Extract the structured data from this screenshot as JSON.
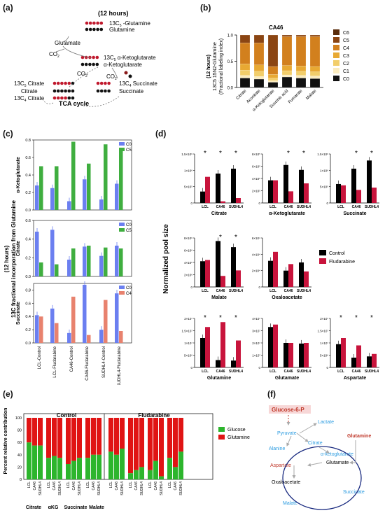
{
  "panel_labels": {
    "a": "(a)",
    "b": "(b)",
    "c": "(c)",
    "d": "(d)",
    "e": "(e)",
    "f": "(f)"
  },
  "panel_a": {
    "header": "(12 hours)",
    "m1": "13C",
    "m1_sub": "5",
    "m1_rest": " -Glutamine",
    "m2": "Glutamine",
    "glu": "Glutamate",
    "co2_1": "CO",
    "co2_2": "CO",
    "co2_3": "CO",
    "akg_lab": "13C",
    "akg_sub": "5",
    "akg_rest": " α-Ketoglutarate",
    "akg2": "α-Ketoglutarate",
    "succ_lab": "13C",
    "succ_sub": "4",
    "succ_rest": " Succinate",
    "succ2": "Succinate",
    "cit5_lab": "13C",
    "cit5_sub": "5",
    "cit5_rest": " Citrate",
    "cit": "Citrate",
    "cit4_lab": "13C",
    "cit4_sub": "4",
    "cit4_rest": " Citrate",
    "tca": "TCA cycle"
  },
  "panel_b": {
    "title": "CA46",
    "ylabel1": "(12 hours)",
    "ylabel2": "13C5 15N2-Glutamine",
    "ylabel3": "(Fractional labeling index)",
    "yticks": [
      "0.0",
      "0.5",
      "1.0"
    ],
    "legend": [
      "C6",
      "C5",
      "C4",
      "C3",
      "C2",
      "C1",
      "C0"
    ],
    "colors": {
      "C6": "#5a2d0c",
      "C5": "#8b4513",
      "C4": "#d2801e",
      "C3": "#e8a933",
      "C2": "#f2ce6b",
      "C1": "#fbecc0",
      "C0": "#111111"
    }
  },
  "panel_c": {
    "ylabel_main": "13C fractional incorporation from Glutamine",
    "ylabel_hours": "(12 hours)",
    "sub1": {
      "title": "α-Ketoglutarate",
      "legend": [
        "C0",
        "C5"
      ],
      "yticks": [
        "0.0",
        "0.2",
        "0.4",
        "0.6",
        "0.8"
      ]
    },
    "sub2": {
      "title": "Citrate",
      "legend": [
        "C0",
        "C5"
      ],
      "yticks": [
        "0.0",
        "0.2",
        "0.4",
        "0.6"
      ]
    },
    "sub3": {
      "title": "Succinate",
      "legend": [
        "C0",
        "C4"
      ],
      "yticks": [
        "0.0",
        "0.2",
        "0.4",
        "0.6",
        "0.8"
      ]
    },
    "xlabels": [
      "LCL-Control",
      "LCL-Fludarabine",
      "CA46-Control",
      "CA46-Fludarabine",
      "SUDHL4-Control",
      "SUDHL4-Fludarabine"
    ]
  },
  "panel_d": {
    "ylabel": "Normalized pool size",
    "legend": [
      "Control",
      "Fludarabine"
    ],
    "colors": {
      "Control": "#000000",
      "Fludarabine": "#c8143c"
    },
    "xlabels": [
      "LCL",
      "CA46",
      "SUDHL4"
    ],
    "sig": "*",
    "titles": [
      "Citrate",
      "α-Ketoglutarate",
      "Succinate",
      "Malate",
      "Oxaloacetate",
      "Glutamine",
      "Glutamate",
      "Aspartate"
    ],
    "yticks": {
      "Citrate": [
        "0",
        "5×10⁵",
        "1×10⁶",
        "1.5×10⁶"
      ],
      "α-Ketoglutarate": [
        "0",
        "2×10⁵",
        "4×10⁵",
        "6×10⁵",
        "8×10⁵"
      ],
      "Succinate": [
        "0",
        "5×10⁵",
        "1×10⁶",
        "1.5×10⁶"
      ],
      "Malate": [
        "0",
        "2×10⁶",
        "4×10⁶",
        "6×10⁶",
        "8×10⁶"
      ],
      "Oxaloacetate": [
        "0",
        "2×10⁴",
        "4×10⁴",
        "6×10⁴"
      ],
      "Glutamine": [
        "0",
        "5×10⁶",
        "1×10⁷",
        "1.5×10⁷",
        "2×10⁷"
      ],
      "Glutamate": [
        "0",
        "1×10⁷",
        "2×10⁷",
        "3×10⁷",
        "4×10⁷"
      ],
      "Aspartate": [
        "0",
        "5×10⁶",
        "1×10⁷",
        "1.5×10⁷",
        "2×10⁷"
      ]
    }
  },
  "panel_e": {
    "ylabel": "Percent relative contribution",
    "group_control": "Control",
    "group_flud": "Fludarabine",
    "legend": [
      "Glucose",
      "Glutamine"
    ],
    "colors": {
      "Glucose": "#2db52d",
      "Glutamine": "#e01414"
    },
    "yticks": [
      "0",
      "20",
      "40",
      "60",
      "80",
      "100"
    ],
    "cells": [
      "LCL",
      "CA46",
      "SUDHL4"
    ],
    "metabolites": [
      "Citrate",
      "αKG",
      "Succinate",
      "Malate"
    ]
  },
  "panel_f": {
    "g6p": "Glucose-6-P",
    "lactate": "Lactate",
    "pyruvate": "Pyruvate",
    "alanine": "Alanine",
    "citrate": "Citrate",
    "glutamine": "Glutamine",
    "akg": "α-ketoglutarate",
    "glutamate": "Glutamate",
    "aspartate": "Aspartate",
    "oaa": "Oxaloacetate",
    "malate": "Malate",
    "succinate": "Succinate"
  },
  "chart_data": [
    {
      "type": "bar",
      "id": "b",
      "title": "CA46",
      "categories": [
        "Citrate",
        "Aconitate",
        "α-Ketoglutarate",
        "Succinic acid",
        "Fumarate",
        "Malate"
      ],
      "ylim": [
        0,
        1
      ],
      "stacked": true,
      "series": [
        {
          "name": "C0",
          "values": [
            0.18,
            0.16,
            0.1,
            0.2,
            0.18,
            0.17
          ]
        },
        {
          "name": "C1",
          "values": [
            0.05,
            0.05,
            0.03,
            0.04,
            0.05,
            0.05
          ]
        },
        {
          "name": "C2",
          "values": [
            0.1,
            0.1,
            0.05,
            0.08,
            0.08,
            0.08
          ]
        },
        {
          "name": "C3",
          "values": [
            0.12,
            0.12,
            0.07,
            0.1,
            0.1,
            0.1
          ]
        },
        {
          "name": "C4",
          "values": [
            0.4,
            0.42,
            0.15,
            0.55,
            0.56,
            0.57
          ]
        },
        {
          "name": "C5",
          "values": [
            0.15,
            0.15,
            0.6,
            0.03,
            0.03,
            0.03
          ]
        },
        {
          "name": "C6",
          "values": [
            0.0,
            0.0,
            0.0,
            0.0,
            0.0,
            0.0
          ]
        }
      ]
    },
    {
      "type": "bar",
      "id": "c1",
      "title": "α-Ketoglutarate",
      "categories": [
        "LCL-Control",
        "LCL-Fludarabine",
        "CA46-Control",
        "CA46-Fludarabine",
        "SUDHL4-Control",
        "SUDHL4-Fludarabine"
      ],
      "ylim": [
        0,
        0.8
      ],
      "series": [
        {
          "name": "C0",
          "values": [
            0.28,
            0.25,
            0.1,
            0.35,
            0.12,
            0.3
          ]
        },
        {
          "name": "C5",
          "values": [
            0.5,
            0.5,
            0.78,
            0.53,
            0.75,
            0.7
          ]
        }
      ]
    },
    {
      "type": "bar",
      "id": "c2",
      "title": "Citrate",
      "categories": [
        "LCL-Control",
        "LCL-Fludarabine",
        "CA46-Control",
        "CA46-Fludarabine",
        "SUDHL4-Control",
        "SUDHL4-Fludarabine"
      ],
      "ylim": [
        0,
        0.6
      ],
      "series": [
        {
          "name": "C0",
          "values": [
            0.48,
            0.5,
            0.18,
            0.32,
            0.22,
            0.33
          ]
        },
        {
          "name": "C5",
          "values": [
            0.15,
            0.13,
            0.3,
            0.33,
            0.31,
            0.3
          ]
        }
      ]
    },
    {
      "type": "bar",
      "id": "c3",
      "title": "Succinate",
      "categories": [
        "LCL-Control",
        "LCL-Fludarabine",
        "CA46-Control",
        "CA46-Fludarabine",
        "SUDHL4-Control",
        "SUDHL4-Fludarabine"
      ],
      "ylim": [
        0,
        0.9
      ],
      "series": [
        {
          "name": "C0",
          "values": [
            0.42,
            0.52,
            0.15,
            0.88,
            0.2,
            0.75
          ]
        },
        {
          "name": "C4",
          "values": [
            0.4,
            0.3,
            0.7,
            0.12,
            0.65,
            0.18
          ]
        }
      ]
    },
    {
      "type": "bar",
      "id": "d",
      "categories": [
        "LCL",
        "CA46",
        "SUDHL4"
      ],
      "panels": [
        {
          "title": "Citrate",
          "ylim": [
            0,
            1500000
          ],
          "Control": [
            350000,
            900000,
            1050000
          ],
          "Fludarabine": [
            800000,
            50000,
            150000
          ]
        },
        {
          "title": "α-Ketoglutarate",
          "ylim": [
            0,
            800000
          ],
          "Control": [
            370000,
            620000,
            540000
          ],
          "Fludarabine": [
            370000,
            190000,
            320000
          ]
        },
        {
          "title": "Succinate",
          "ylim": [
            0,
            1500000
          ],
          "Control": [
            580000,
            1050000,
            1300000
          ],
          "Fludarabine": [
            540000,
            400000,
            470000
          ]
        },
        {
          "title": "Malate",
          "ylim": [
            0,
            8000000
          ],
          "Control": [
            4200000,
            7500000,
            6500000
          ],
          "Fludarabine": [
            4400000,
            1800000,
            2700000
          ]
        },
        {
          "title": "Oxaloacetate",
          "ylim": [
            0,
            60000
          ],
          "Control": [
            32000,
            20000,
            30000
          ],
          "Fludarabine": [
            43000,
            28000,
            19000
          ]
        },
        {
          "title": "Glutamine",
          "ylim": [
            0,
            20000000
          ],
          "Control": [
            12000000,
            3000000,
            2800000
          ],
          "Fludarabine": [
            16500000,
            18500000,
            11000000
          ]
        },
        {
          "title": "Glutamate",
          "ylim": [
            0,
            40000000
          ],
          "Control": [
            33000000,
            20000000,
            19500000
          ],
          "Fludarabine": [
            35000000,
            20000000,
            20000000
          ]
        },
        {
          "title": "Aspartate",
          "ylim": [
            0,
            20000000
          ],
          "Control": [
            9500000,
            4000000,
            4500000
          ],
          "Fludarabine": [
            12000000,
            9000000,
            5500000
          ]
        }
      ]
    },
    {
      "type": "bar",
      "id": "e",
      "stacked": true,
      "ylim": [
        0,
        100
      ],
      "groups": [
        "Control",
        "Fludarabine"
      ],
      "metabolites": [
        "Citrate",
        "αKG",
        "Succinate",
        "Malate"
      ],
      "cells": [
        "LCL",
        "CA46",
        "SUDHL4"
      ],
      "glucose": {
        "Control": [
          [
            60,
            55,
            55
          ],
          [
            35,
            38,
            35
          ],
          [
            25,
            30,
            35
          ],
          [
            35,
            40,
            40
          ]
        ],
        "Fludarabine": [
          [
            45,
            40,
            50
          ],
          [
            10,
            15,
            20
          ],
          [
            15,
            30,
            5
          ],
          [
            35,
            20,
            45
          ]
        ]
      }
    }
  ]
}
